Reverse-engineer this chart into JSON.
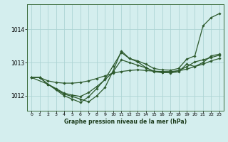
{
  "background_color": "#d4eeee",
  "grid_color": "#add4d4",
  "line_color": "#2d5a2d",
  "title": "Graphe pression niveau de la mer (hPa)",
  "xlim": [
    -0.5,
    23.5
  ],
  "ylim": [
    1011.55,
    1014.75
  ],
  "yticks": [
    1012,
    1013,
    1014
  ],
  "xticks": [
    0,
    1,
    2,
    3,
    4,
    5,
    6,
    7,
    8,
    9,
    10,
    11,
    12,
    13,
    14,
    15,
    16,
    17,
    18,
    19,
    20,
    21,
    22,
    23
  ],
  "series": [
    {
      "x": [
        0,
        1,
        2,
        3,
        4,
        5,
        6,
        7,
        8,
        9,
        10,
        11,
        12,
        13,
        14,
        15,
        16,
        17,
        18,
        19,
        20,
        21,
        22,
        23
      ],
      "y": [
        1012.55,
        1012.55,
        1012.45,
        1012.4,
        1012.38,
        1012.38,
        1012.4,
        1012.45,
        1012.52,
        1012.6,
        1012.68,
        1012.73,
        1012.76,
        1012.78,
        1012.76,
        1012.74,
        1012.73,
        1012.73,
        1012.75,
        1012.8,
        1012.88,
        1012.95,
        1013.05,
        1013.12
      ]
    },
    {
      "x": [
        0,
        1,
        2,
        3,
        4,
        5,
        6,
        7,
        8,
        9,
        10,
        11,
        12,
        13,
        14,
        15,
        16,
        17,
        18,
        19,
        20,
        21,
        22,
        23
      ],
      "y": [
        1012.55,
        1012.55,
        1012.35,
        1012.2,
        1012.05,
        1011.98,
        1011.9,
        1011.82,
        1012.0,
        1012.25,
        1012.75,
        1013.35,
        1013.12,
        1013.05,
        1012.95,
        1012.82,
        1012.78,
        1012.77,
        1012.82,
        1013.1,
        1013.2,
        1014.1,
        1014.35,
        1014.47
      ]
    },
    {
      "x": [
        0,
        2,
        3,
        4,
        5,
        6,
        7,
        8,
        9,
        10,
        11,
        12,
        13,
        14,
        15,
        16,
        17,
        18,
        19,
        20,
        21,
        22,
        23
      ],
      "y": [
        1012.55,
        1012.35,
        1012.18,
        1012.0,
        1011.9,
        1011.8,
        1011.97,
        1012.22,
        1012.5,
        1012.9,
        1013.3,
        1013.12,
        1013.02,
        1012.85,
        1012.72,
        1012.7,
        1012.69,
        1012.72,
        1012.95,
        1012.88,
        1013.0,
        1013.2,
        1013.25
      ]
    },
    {
      "x": [
        0,
        1,
        2,
        3,
        4,
        5,
        6,
        7,
        8,
        9,
        10,
        11,
        12,
        13,
        14,
        15,
        16,
        17,
        18,
        19,
        20,
        21,
        22,
        23
      ],
      "y": [
        1012.55,
        1012.55,
        1012.35,
        1012.22,
        1012.08,
        1012.02,
        1011.98,
        1012.1,
        1012.28,
        1012.48,
        1012.72,
        1013.08,
        1013.0,
        1012.92,
        1012.84,
        1012.74,
        1012.7,
        1012.7,
        1012.76,
        1012.87,
        1013.02,
        1013.08,
        1013.15,
        1013.22
      ]
    }
  ]
}
